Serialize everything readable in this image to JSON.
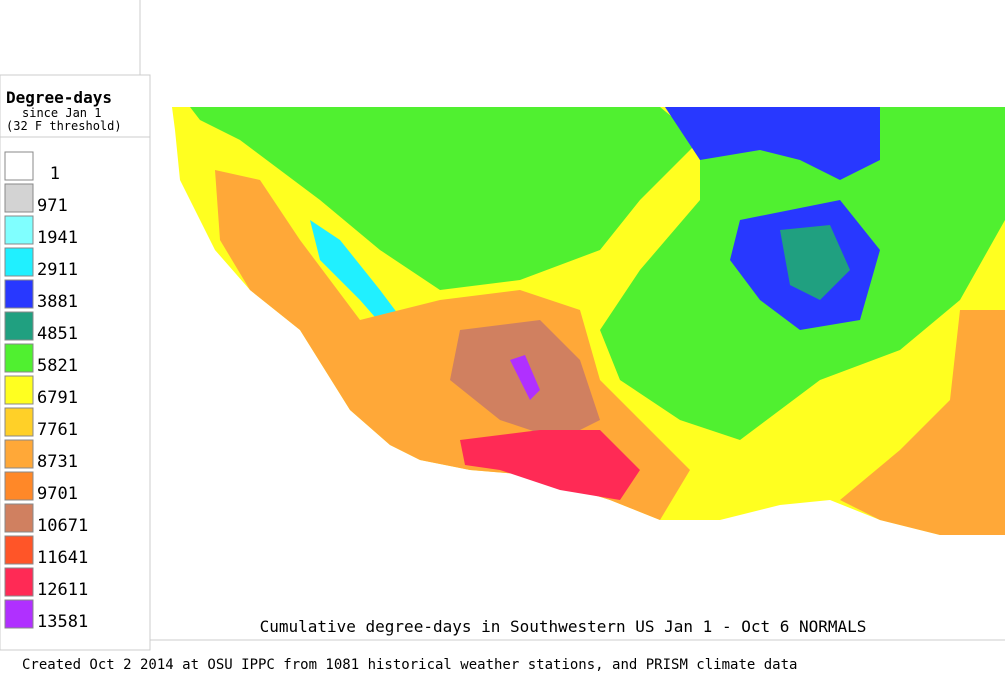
{
  "legend": {
    "title": "Degree-days",
    "subtitle": "since Jan 1",
    "threshold": "(32 F threshold)",
    "items": [
      {
        "label": "1",
        "color": "#ffffff"
      },
      {
        "label": "971",
        "color": "#d3d3d3"
      },
      {
        "label": "1941",
        "color": "#80ffff"
      },
      {
        "label": "2911",
        "color": "#20f0ff"
      },
      {
        "label": "3881",
        "color": "#2838ff"
      },
      {
        "label": "4851",
        "color": "#20a080"
      },
      {
        "label": "5821",
        "color": "#50f030"
      },
      {
        "label": "6791",
        "color": "#ffff20"
      },
      {
        "label": "7761",
        "color": "#ffd028"
      },
      {
        "label": "8731",
        "color": "#ffa838"
      },
      {
        "label": "9701",
        "color": "#ff8828"
      },
      {
        "label": "10671",
        "color": "#d08060"
      },
      {
        "label": "11641",
        "color": "#ff5528"
      },
      {
        "label": "12611",
        "color": "#ff2a55"
      },
      {
        "label": "13581",
        "color": "#b030ff"
      }
    ]
  },
  "map": {
    "caption": "Cumulative degree-days in Southwestern US Jan 1 - Oct 6 NORMALS"
  },
  "footer": "Created Oct 2 2014 at OSU IPPC from 1081 historical weather stations, and PRISM climate data"
}
